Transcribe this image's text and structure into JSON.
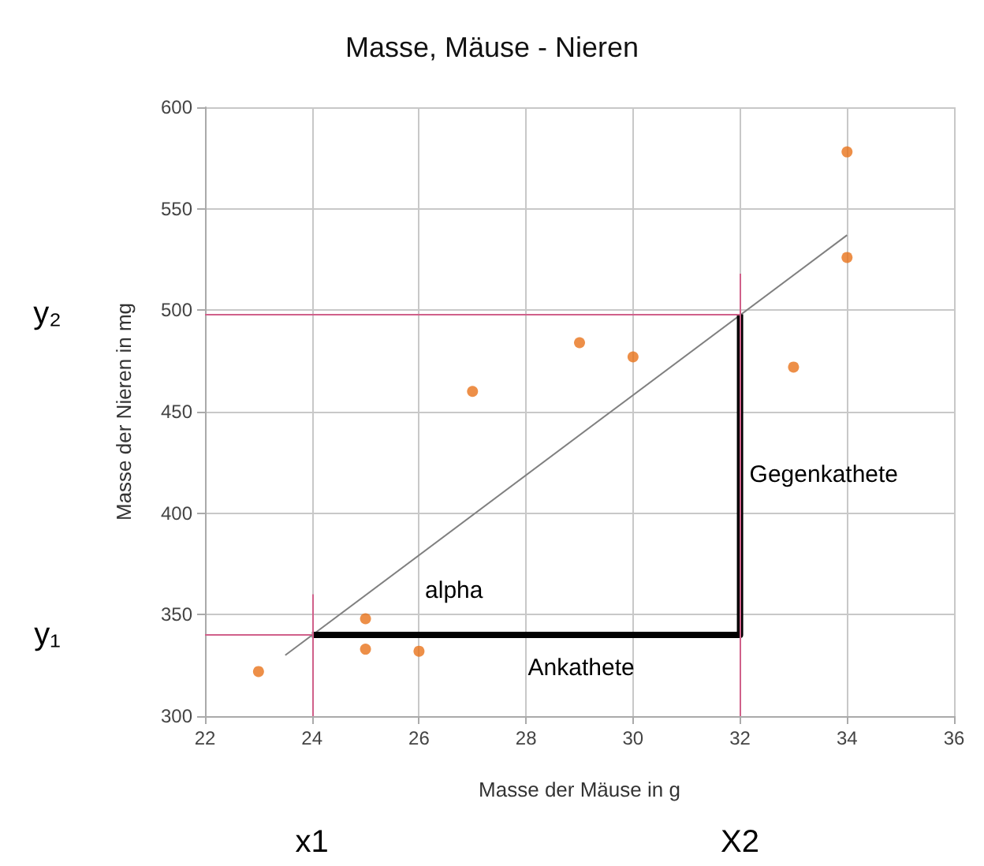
{
  "chart_data": {
    "type": "scatter",
    "title": "Masse, Mäuse - Nieren",
    "xlabel": "Masse der Mäuse in g",
    "ylabel": "Masse der Nieren in mg",
    "series": [
      {
        "type": "scatter",
        "color": "#e8731a",
        "x": [
          23,
          25,
          25,
          26,
          27,
          29,
          30,
          33,
          34,
          34
        ],
        "values": [
          322,
          348,
          333,
          332,
          460,
          484,
          477,
          472,
          578,
          526
        ]
      },
      {
        "type": "line",
        "marker": "none",
        "color": "#808080",
        "x": [
          23.5,
          34
        ],
        "values": [
          330,
          537
        ]
      },
      {
        "type": "line",
        "marker": "none",
        "color": "#000000",
        "x": [
          24,
          32,
          32
        ],
        "values": [
          340,
          340,
          498
        ]
      }
    ],
    "xlim": [
      22,
      36
    ],
    "xticks": [
      22,
      24,
      26,
      28,
      30,
      32,
      34,
      36
    ],
    "ylim": [
      300,
      600
    ],
    "yticks": [
      300,
      350,
      400,
      450,
      500,
      550,
      600
    ],
    "grid": true,
    "marker": "circle",
    "ref_lines": [
      {
        "axis": "x",
        "value": 24,
        "color": "#d0608a"
      },
      {
        "axis": "x",
        "value": 32,
        "color": "#d0608a"
      },
      {
        "axis": "y",
        "value": 340,
        "color": "#d0608a"
      },
      {
        "axis": "y",
        "value": 498,
        "color": "#d0608a"
      }
    ],
    "annotations": [
      "alpha",
      "Ankathete",
      "Gegenkathete",
      "x1",
      "X2",
      "y₁",
      "y₂"
    ]
  }
}
